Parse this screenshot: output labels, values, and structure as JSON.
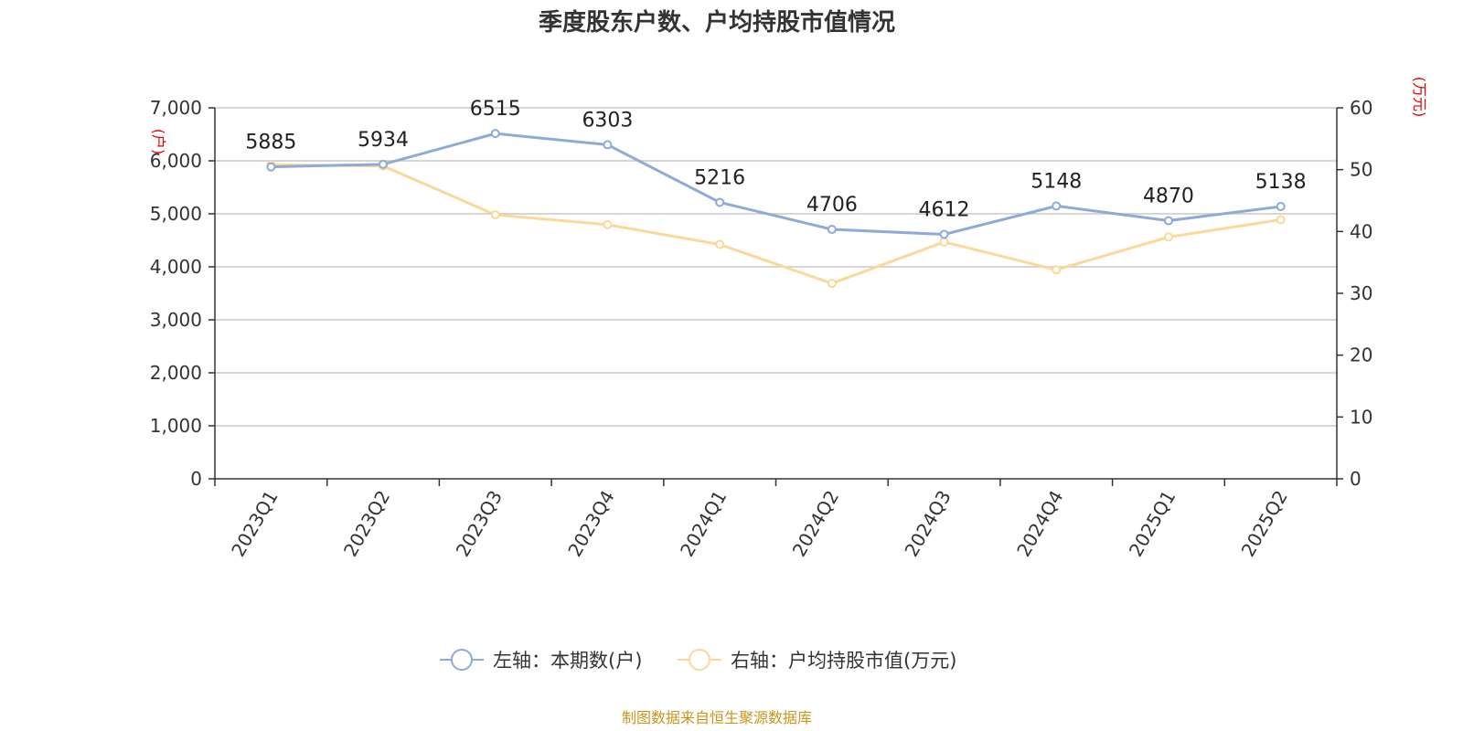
{
  "chart_data": {
    "type": "line",
    "title": "季度股东户数、户均持股市值情况",
    "categories": [
      "2023Q1",
      "2023Q2",
      "2023Q3",
      "2023Q4",
      "2024Q1",
      "2024Q2",
      "2024Q3",
      "2024Q4",
      "2025Q1",
      "2025Q2"
    ],
    "left_axis": {
      "unit_label": "(户)",
      "range": [
        0,
        7000
      ],
      "ticks": [
        "0",
        "1,000",
        "2,000",
        "3,000",
        "4,000",
        "5,000",
        "6,000",
        "7,000"
      ]
    },
    "right_axis": {
      "unit_label": "(万元)",
      "range": [
        0,
        60
      ],
      "ticks": [
        "0",
        "10",
        "20",
        "30",
        "40",
        "50",
        "60"
      ]
    },
    "series": [
      {
        "name": "左轴：本期数(户)",
        "axis": "left",
        "color": "#8eaad8",
        "values": [
          5885,
          5934,
          6515,
          6303,
          5216,
          4706,
          4612,
          5148,
          4870,
          5138
        ],
        "data_labels": [
          "5885",
          "5934",
          "6515",
          "6303",
          "5216",
          "4706",
          "4612",
          "5148",
          "4870",
          "5138"
        ]
      },
      {
        "name": "右轴：户均持股市值(万元)",
        "axis": "right",
        "color": "#fcd898",
        "values": [
          50.8,
          50.6,
          42.7,
          41.1,
          37.9,
          31.6,
          38.3,
          33.8,
          39.1,
          41.9
        ]
      }
    ],
    "grid": true,
    "legend_position": "bottom"
  },
  "source": "制图数据来自恒生聚源数据库"
}
